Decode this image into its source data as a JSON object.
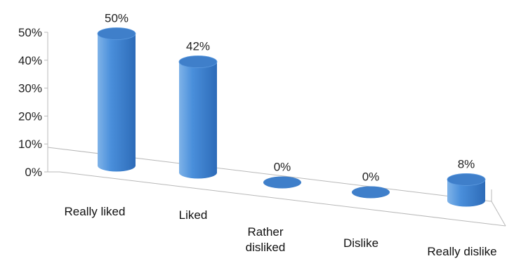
{
  "chart_data": {
    "type": "bar",
    "style": "3d-cylinder",
    "categories": [
      [
        "Really liked"
      ],
      [
        "Liked"
      ],
      [
        "Rather",
        "disliked"
      ],
      [
        "Dislike"
      ],
      [
        "Really dislike"
      ]
    ],
    "values": [
      50,
      42,
      0,
      0,
      8
    ],
    "data_labels": [
      "50%",
      "42%",
      "0%",
      "0%",
      "8%"
    ],
    "y_ticks": [
      "0%",
      "10%",
      "20%",
      "30%",
      "40%",
      "50%"
    ],
    "ylim": [
      0,
      50
    ],
    "title": "",
    "xlabel": "",
    "ylabel": "",
    "grid": false,
    "legend": "none",
    "colors": {
      "bar_light": "#7fb3e8",
      "bar_mid": "#4a8fdb",
      "bar_dark": "#2d6bb8",
      "bar_top": "#3f7fca",
      "axis": "#b8b8b8"
    }
  }
}
